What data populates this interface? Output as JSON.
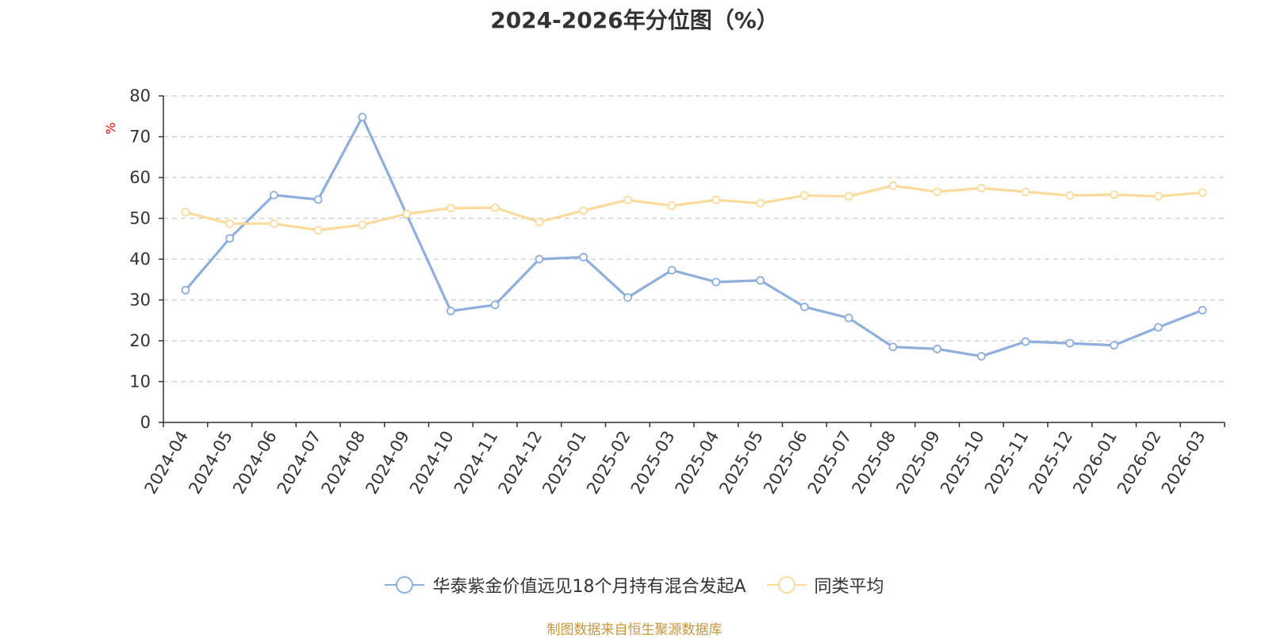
{
  "chart_data": {
    "type": "line",
    "title": "2024-2026年分位图（%）",
    "ylabel": "%",
    "ylim": [
      0,
      80
    ],
    "yticks": [
      0,
      10,
      20,
      30,
      40,
      50,
      60,
      70,
      80
    ],
    "grid": true,
    "legend_position": "bottom",
    "categories": [
      "2024-04",
      "2024-05",
      "2024-06",
      "2024-07",
      "2024-08",
      "2024-09",
      "2024-10",
      "2024-11",
      "2024-12",
      "2025-01",
      "2025-02",
      "2025-03",
      "2025-04",
      "2025-05",
      "2025-06",
      "2025-07",
      "2025-08",
      "2025-09",
      "2025-10",
      "2025-11",
      "2025-12",
      "2026-01",
      "2026-02",
      "2026-03"
    ],
    "series": [
      {
        "name": "华泰紫金价值远见18个月持有混合发起A",
        "color": "#8eaedb",
        "values": [
          32.4,
          45.1,
          55.7,
          54.6,
          74.8,
          51.0,
          27.3,
          28.8,
          40.0,
          40.5,
          30.6,
          37.3,
          34.4,
          34.8,
          28.3,
          25.6,
          18.5,
          18.0,
          16.2,
          19.8,
          19.4,
          18.9,
          23.3,
          27.5
        ]
      },
      {
        "name": "同类平均",
        "color": "#fbdb9c",
        "values": [
          51.5,
          48.7,
          48.7,
          47.1,
          48.4,
          51.1,
          52.5,
          52.6,
          49.1,
          51.9,
          54.5,
          53.1,
          54.5,
          53.7,
          55.6,
          55.4,
          58.0,
          56.5,
          57.4,
          56.5,
          55.6,
          55.8,
          55.4,
          56.3
        ]
      }
    ]
  },
  "source_text": "制图数据来自恒生聚源数据库"
}
